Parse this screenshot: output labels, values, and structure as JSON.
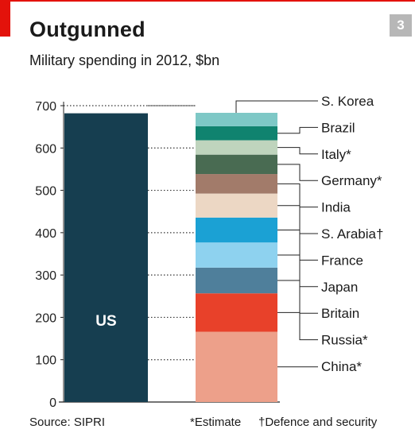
{
  "header": {
    "chart_number": "3",
    "title": "Outgunned",
    "subtitle": "Military spending in 2012, $bn"
  },
  "footer": {
    "source": "Source: SIPRI",
    "note_estimate": "*Estimate",
    "note_defence": "†Defence and security"
  },
  "colors": {
    "brand_red": "#e3120b",
    "us_bar": "#163e50",
    "grid": "#333333"
  },
  "chart_data": {
    "type": "bar",
    "title": "Outgunned",
    "subtitle": "Military spending in 2012, $bn",
    "ylim": [
      0,
      700
    ],
    "yticks": [
      0,
      100,
      200,
      300,
      400,
      500,
      600,
      700
    ],
    "us": {
      "label": "US",
      "value": 682
    },
    "stack": [
      {
        "name": "China*",
        "value": 166,
        "color": "#eda08a"
      },
      {
        "name": "Russia*",
        "value": 90.7,
        "color": "#e8412a"
      },
      {
        "name": "Britain",
        "value": 60.8,
        "color": "#4f7f9b"
      },
      {
        "name": "Japan",
        "value": 59.3,
        "color": "#8ed2ef"
      },
      {
        "name": "France",
        "value": 58.9,
        "color": "#1ba1d4"
      },
      {
        "name": "S. Arabia†",
        "value": 56.7,
        "color": "#ecd7c4"
      },
      {
        "name": "India",
        "value": 46.1,
        "color": "#a27b6a"
      },
      {
        "name": "Germany*",
        "value": 45.8,
        "color": "#496b52"
      },
      {
        "name": "Italy*",
        "value": 34,
        "color": "#bfd4bd"
      },
      {
        "name": "Brazil",
        "value": 33.1,
        "color": "#10836f"
      },
      {
        "name": "S. Korea",
        "value": 31.7,
        "color": "#7ec8c6"
      }
    ]
  }
}
